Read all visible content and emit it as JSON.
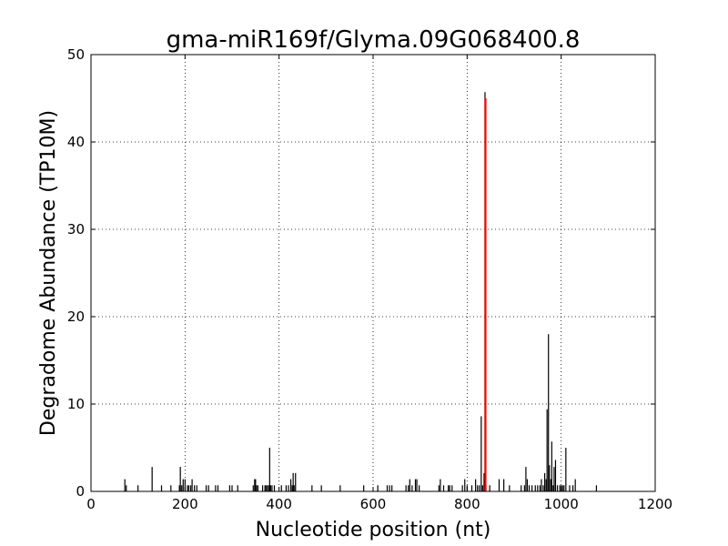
{
  "chart_data": {
    "type": "bar",
    "title": "gma-miR169f/Glyma.09G068400.8",
    "xlabel": "Nucleotide position (nt)",
    "ylabel": "Degradome Abundance (TP10M)",
    "xlim": [
      0,
      1200
    ],
    "ylim": [
      0,
      50
    ],
    "xticks": [
      0,
      200,
      400,
      600,
      800,
      1000,
      1200
    ],
    "yticks": [
      0,
      10,
      20,
      30,
      40,
      50
    ],
    "grid": true,
    "colors": {
      "bars": "#000000",
      "highlight": "#ff0000",
      "grid": "#000000"
    },
    "highlight": {
      "x": 839,
      "y": 45
    },
    "series": [
      {
        "x": [
          72,
          75,
          100,
          130,
          150,
          170,
          188,
          190,
          193,
          196,
          200,
          205,
          208,
          212,
          215,
          220,
          225,
          245,
          250,
          265,
          270,
          295,
          300,
          312,
          345,
          348,
          350,
          352,
          355,
          365,
          370,
          372,
          375,
          378,
          380,
          382,
          385,
          390,
          405,
          415,
          420,
          425,
          428,
          430,
          432,
          435,
          470,
          490,
          530,
          580,
          610,
          630,
          635,
          640,
          670,
          675,
          678,
          683,
          690,
          693,
          698,
          740,
          743,
          750,
          760,
          763,
          768,
          790,
          795,
          800,
          810,
          818,
          822,
          826,
          830,
          833,
          836,
          838,
          840,
          848,
          868,
          878,
          890,
          915,
          922,
          925,
          928,
          932,
          938,
          945,
          950,
          955,
          958,
          962,
          965,
          968,
          970,
          973,
          975,
          978,
          980,
          983,
          985,
          988,
          992,
          997,
          1000,
          1003,
          1006,
          1010,
          1018,
          1025,
          1030,
          1075
        ],
        "y": [
          1.4,
          0.7,
          0.7,
          2.8,
          0.7,
          0.7,
          0.7,
          2.8,
          0.7,
          1.4,
          1.4,
          0.7,
          0.7,
          0.7,
          1.4,
          0.7,
          0.7,
          0.7,
          0.7,
          0.7,
          0.7,
          0.7,
          0.7,
          0.7,
          0.7,
          1.4,
          1.4,
          0.7,
          0.7,
          0.7,
          0.7,
          0.7,
          0.7,
          0.7,
          5.0,
          0.7,
          0.7,
          0.7,
          0.7,
          0.7,
          0.7,
          1.4,
          0.7,
          2.1,
          0.7,
          2.1,
          0.7,
          0.7,
          0.7,
          0.7,
          0.7,
          0.7,
          0.7,
          0.7,
          0.7,
          0.7,
          1.4,
          0.7,
          1.4,
          1.4,
          0.7,
          0.7,
          1.4,
          0.7,
          0.7,
          0.7,
          0.7,
          0.7,
          1.4,
          0.7,
          0.7,
          1.4,
          0.7,
          0.7,
          8.6,
          0.7,
          2.1,
          45.7,
          0.7,
          0.7,
          1.4,
          1.4,
          0.7,
          0.7,
          0.7,
          2.8,
          1.4,
          0.7,
          0.7,
          0.7,
          0.7,
          0.7,
          1.4,
          0.7,
          2.1,
          1.4,
          9.4,
          18.0,
          3.0,
          1.4,
          5.7,
          0.7,
          2.8,
          3.6,
          0.7,
          0.7,
          0.7,
          0.7,
          0.7,
          5.0,
          0.7,
          0.7,
          1.4,
          0.7
        ]
      }
    ]
  }
}
